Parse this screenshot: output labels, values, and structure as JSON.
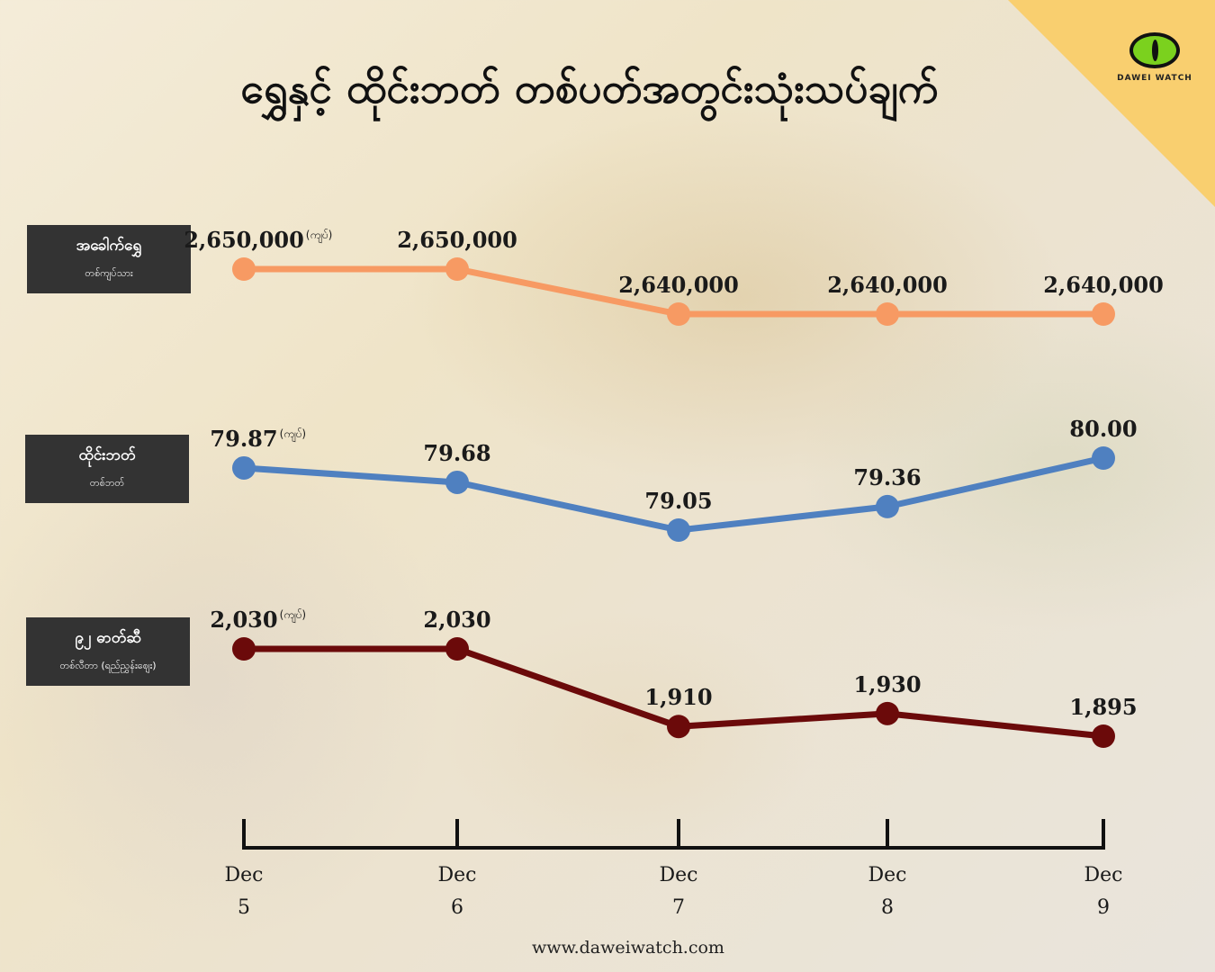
{
  "title": "ရွှေနှင့် ထိုင်းဘတ် တစ်ပတ်အတွင်းသုံးသပ်ချက်",
  "brand": "DAWEI WATCH",
  "footer": "www.daweiwatch.com",
  "unit_note": "(ကျပ်)",
  "labels": [
    {
      "name": "အခေါက်ရွှေ",
      "unit": "တစ်ကျပ်သား"
    },
    {
      "name": "ထိုင်းဘတ်",
      "unit": "တစ်ဘတ်"
    },
    {
      "name": "၉၂ ဓာတ်ဆီ",
      "unit": "တစ်လီတာ (ရည်ညွှန်းဈေး)"
    }
  ],
  "colors": {
    "gold": "#f79a63",
    "baht": "#4f80c0",
    "fuel": "#6b0a0a",
    "corner": "#f9cf6f"
  },
  "chart_data": {
    "type": "line",
    "categories": [
      {
        "month": "Dec",
        "day": "5"
      },
      {
        "month": "Dec",
        "day": "6"
      },
      {
        "month": "Dec",
        "day": "7"
      },
      {
        "month": "Dec",
        "day": "8"
      },
      {
        "month": "Dec",
        "day": "9"
      }
    ],
    "series": [
      {
        "name": "အခေါက်ရွှေ",
        "values": [
          2650000,
          2650000,
          2640000,
          2640000,
          2640000
        ],
        "labels": [
          "2,650,000",
          "2,650,000",
          "2,640,000",
          "2,640,000",
          "2,640,000"
        ]
      },
      {
        "name": "ထိုင်းဘတ်",
        "values": [
          79.87,
          79.68,
          79.05,
          79.36,
          80.0
        ],
        "labels": [
          "79.87",
          "79.68",
          "79.05",
          "79.36",
          "80.00"
        ]
      },
      {
        "name": "၉၂ ဓာတ်ဆီ",
        "values": [
          2030,
          2030,
          1910,
          1930,
          1895
        ],
        "labels": [
          "2,030",
          "2,030",
          "1,910",
          "1,930",
          "1,895"
        ]
      }
    ]
  }
}
